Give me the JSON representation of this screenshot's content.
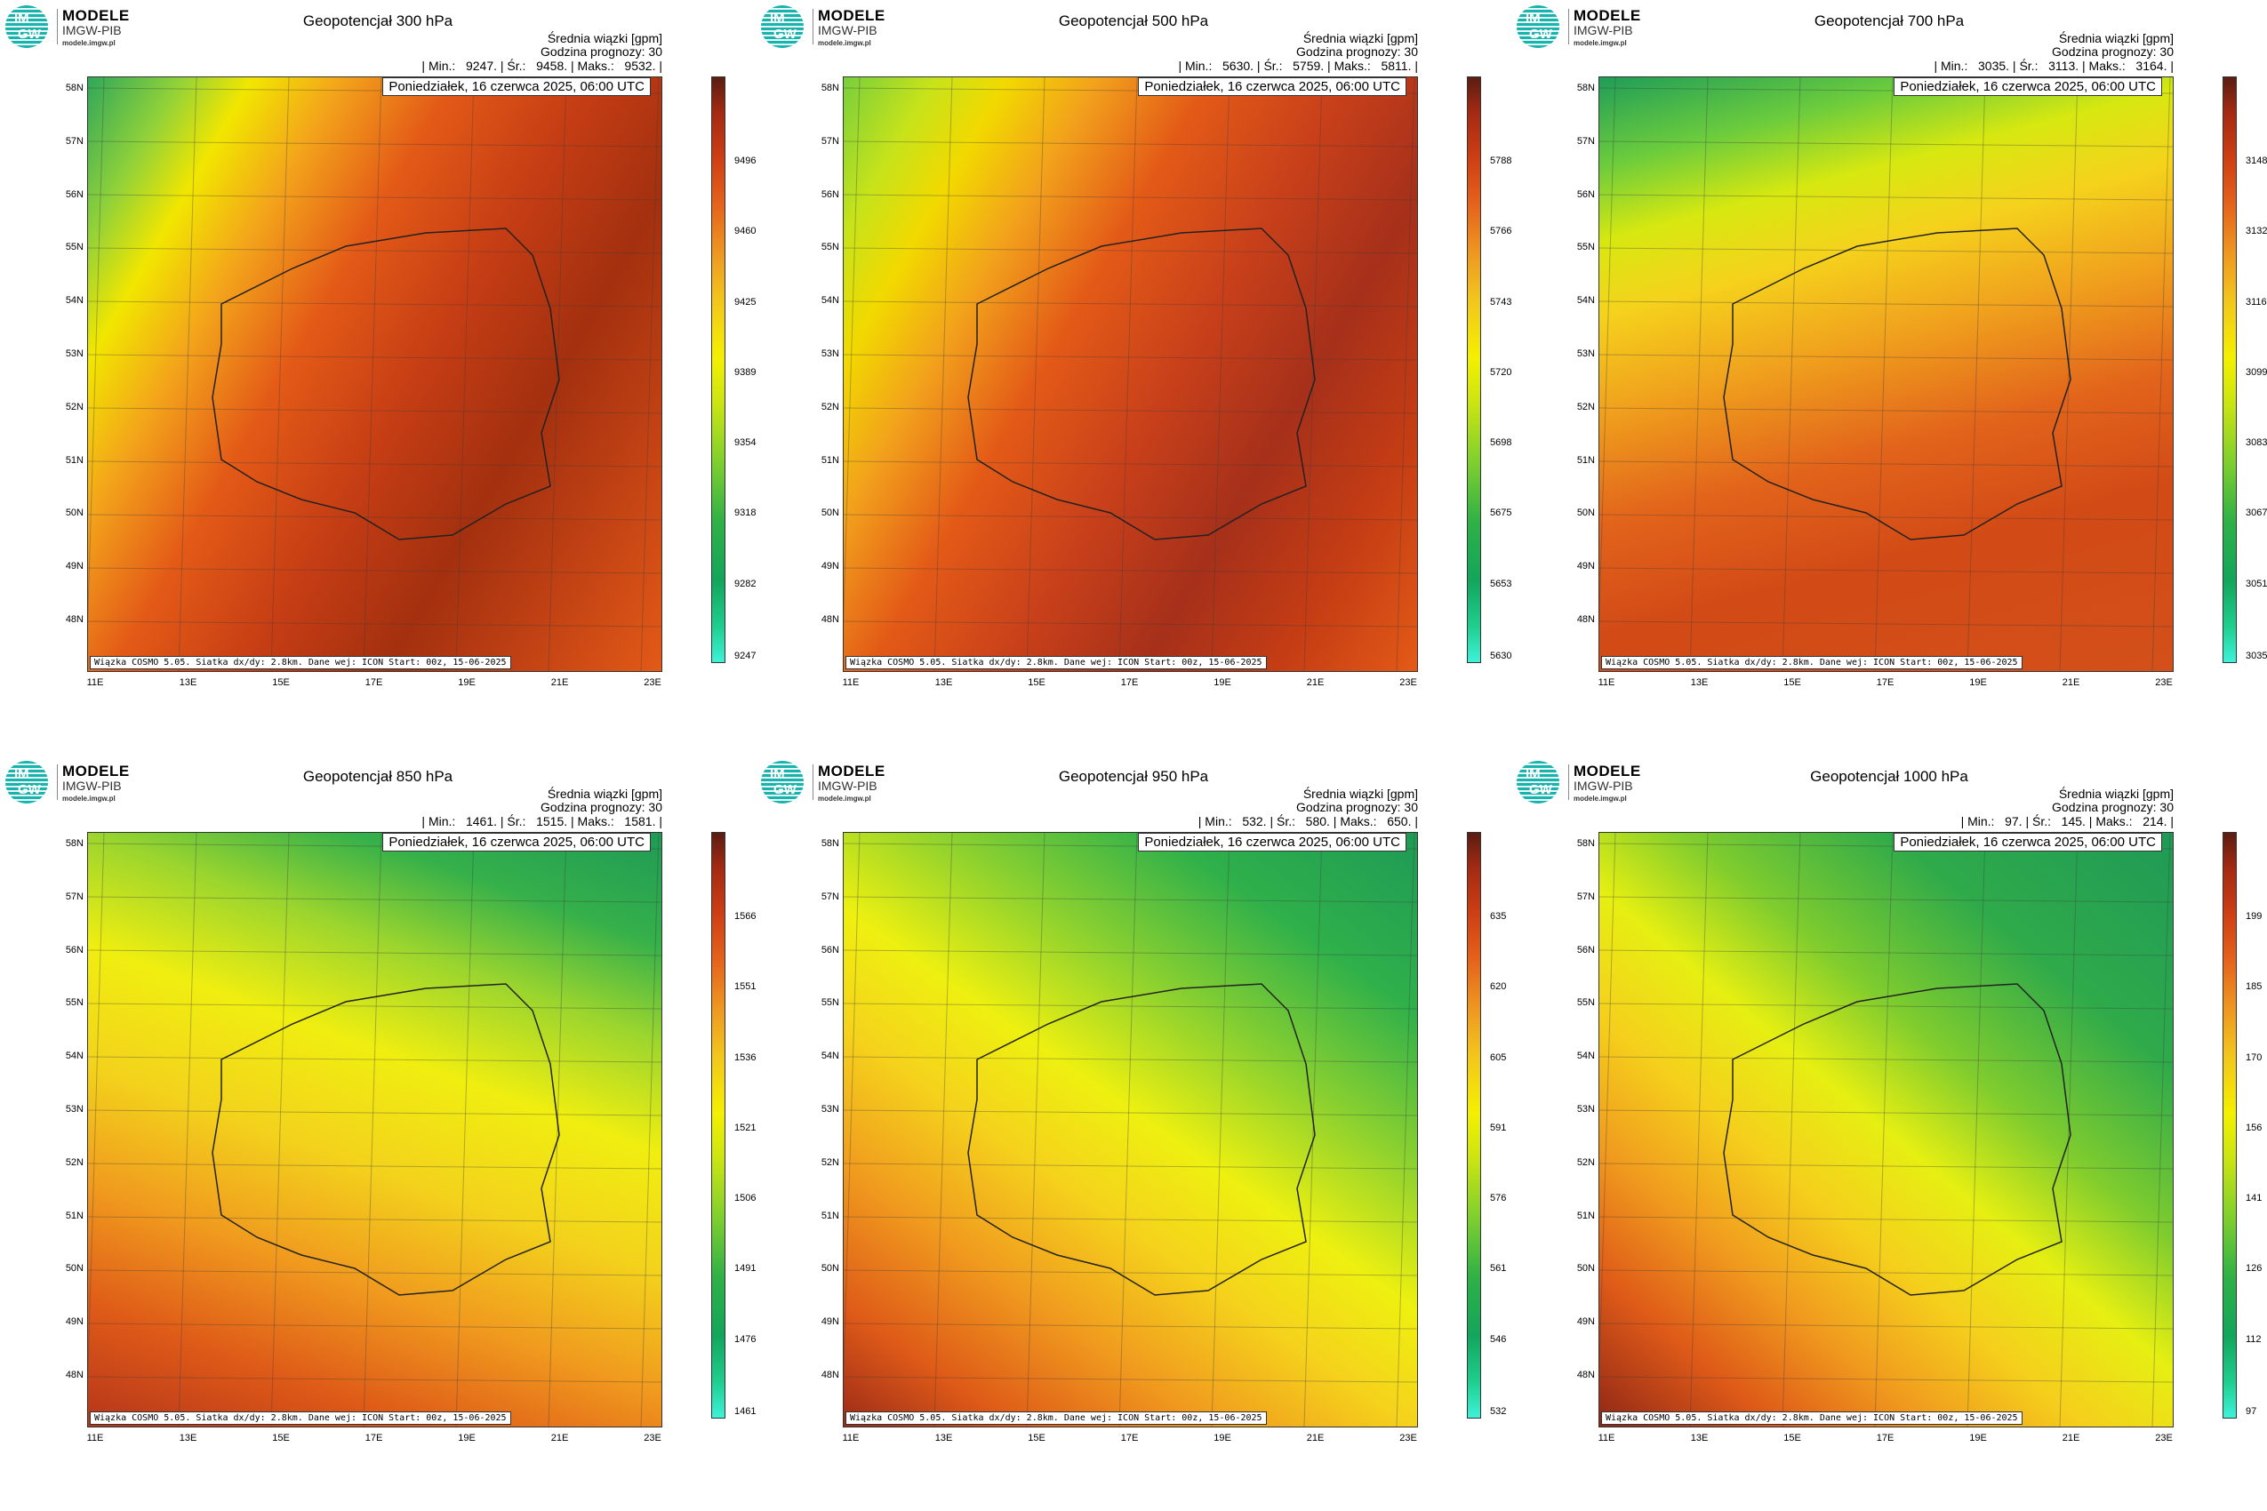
{
  "brand": {
    "title": "MODELE",
    "subtitle": "IMGW-PIB",
    "url": "modele.imgw.pl",
    "logo_l1": "IM",
    "logo_l2": "GW"
  },
  "common": {
    "mean_label": "Średnia wiązki [gpm]",
    "forecast_hour": "Godzina prognozy: 30",
    "date": "Poniedziałek, 16 czerwca 2025, 06:00 UTC",
    "info": "Wiązka COSMO 5.05. Siatka dx/dy: 2.8km. Dane wej: ICON Start: 00z, 15-06-2025",
    "lat_labels": [
      "58N",
      "57N",
      "56N",
      "55N",
      "54N",
      "53N",
      "52N",
      "51N",
      "50N",
      "49N",
      "48N"
    ],
    "lon_labels": [
      "11E",
      "13E",
      "15E",
      "17E",
      "19E",
      "21E",
      "23E"
    ]
  },
  "chart_data": [
    {
      "type": "heatmap",
      "title": "Geopotencjał 300 hPa",
      "min": "9247.",
      "mean": "9458.",
      "max": "9532.",
      "stats": "| Min.:   9247. | Śr.:   9458. | Maks.:   9532. |",
      "colorbar_ticks": [
        "9496",
        "9460",
        "9425",
        "9389",
        "9354",
        "9318",
        "9282",
        "9247"
      ],
      "gradient": "linear-gradient(120deg,#2fa75a 0%,#8fd13a 10%,#f2e600 18%,#f3a31b 28%,#e35a17 40%,#c53d14 55%,#a3300f 70%,#c34314 85%,#e35a17 100%)"
    },
    {
      "type": "heatmap",
      "title": "Geopotencjał 500 hPa",
      "min": "5630.",
      "mean": "5759.",
      "max": "5811.",
      "stats": "| Min.:   5630. | Śr.:   5759. | Maks.:   5811. |",
      "colorbar_ticks": [
        "5788",
        "5766",
        "5743",
        "5720",
        "5698",
        "5675",
        "5653",
        "5630"
      ],
      "gradient": "linear-gradient(120deg,#78cf3c 0%,#c7e31a 10%,#f2d900 18%,#f2a01c 28%,#e35a17 40%,#c8401a 55%,#a6301a 70%,#c53d14 85%,#e35a17 100%)"
    },
    {
      "type": "heatmap",
      "title": "Geopotencjał 700 hPa",
      "min": "3035.",
      "mean": "3113.",
      "max": "3164.",
      "stats": "| Min.:   3035. | Śr.:   3113. | Maks.:   3164. |",
      "colorbar_ticks": [
        "3148",
        "3132",
        "3116",
        "3099",
        "3083",
        "3067",
        "3051",
        "3035"
      ],
      "gradient": "linear-gradient(165deg,#1f9d58 0%,#6ccc3c 12%,#d7e810 22%,#f5d21c 32%,#f0a11d 45%,#e2641b 60%,#d24a16 75%,#d3501a 100%)"
    },
    {
      "type": "heatmap",
      "title": "Geopotencjał 850 hPa",
      "min": "1461.",
      "mean": "1515.",
      "max": "1581.",
      "stats": "| Min.:   1461. | Śr.:   1515. | Maks.:   1581. |",
      "colorbar_ticks": [
        "1566",
        "1551",
        "1536",
        "1521",
        "1506",
        "1491",
        "1476",
        "1461"
      ],
      "gradient": "linear-gradient(200deg,#1f9a56 0%,#35b04a 14%,#9bd52e 26%,#f0ee10 40%,#f3d21c 55%,#f09a1e 70%,#de5a18 85%,#b5351a 100%)"
    },
    {
      "type": "heatmap",
      "title": "Geopotencjał 950 hPa",
      "min": "532.",
      "mean": "580.",
      "max": "650.",
      "stats": "| Min.:   532. | Śr.:   580. | Maks.:   650. |",
      "colorbar_ticks": [
        "635",
        "620",
        "605",
        "591",
        "576",
        "561",
        "546",
        "532"
      ],
      "gradient": "linear-gradient(215deg,#1f9a56 0%,#2fb04a 18%,#8fd22e 34%,#eef010 48%,#f5d21c 60%,#f09a1e 74%,#de5a18 88%,#9b2a17 100%)"
    },
    {
      "type": "heatmap",
      "title": "Geopotencjał 1000 hPa",
      "min": "97.",
      "mean": "145.",
      "max": "214.",
      "stats": "| Min.:   97. | Śr.:   145. | Maks.:   214. |",
      "colorbar_ticks": [
        "199",
        "185",
        "170",
        "156",
        "141",
        "126",
        "112",
        "97"
      ],
      "gradient": "linear-gradient(220deg,#1f9a56 0%,#2faa4a 22%,#7fcc2e 38%,#e6ef12 50%,#f5cf1c 62%,#f09a1e 74%,#de5a18 86%,#8f2616 100%)"
    }
  ],
  "colorbar_gradient": "linear-gradient(to top,#3ef2d9 0%,#1fcf90 6%,#12a65b 14%,#2fb146 24%,#7dcf2e 34%,#c9e412 44%,#f4f000 52%,#f3c51c 62%,#ee9721 70%,#e6641b 78%,#cf3f14 86%,#a42a12 94%,#5b1d12 100%)"
}
